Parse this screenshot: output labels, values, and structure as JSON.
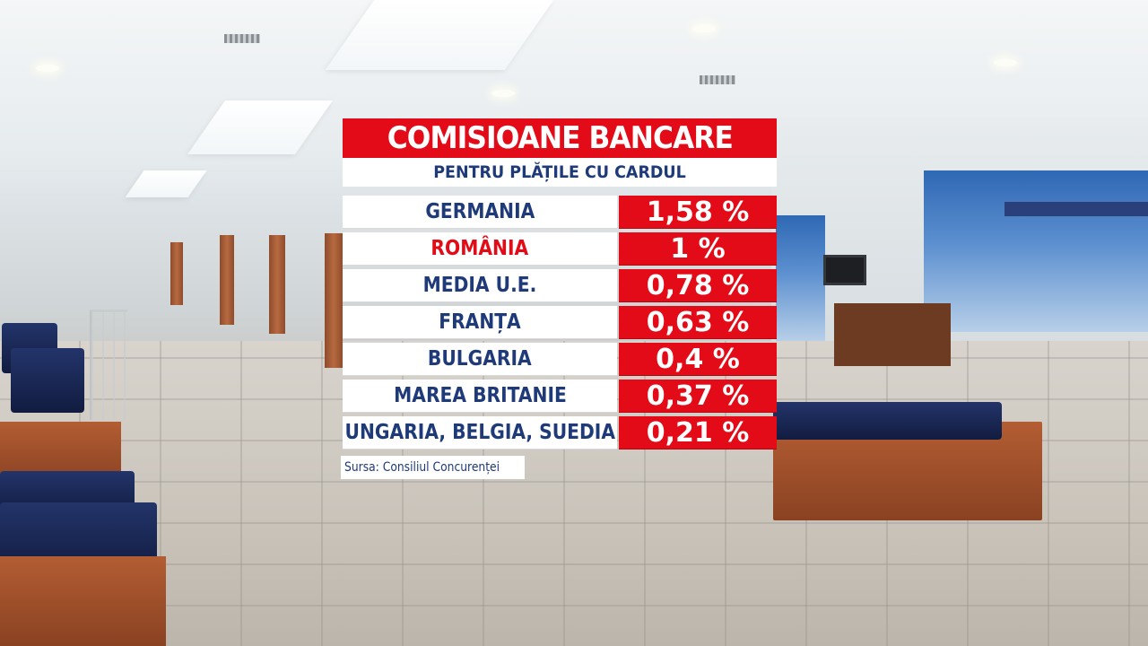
{
  "chart_data": {
    "type": "table",
    "title": "COMISIOANE BANCARE",
    "subtitle": "PENTRU PLĂȚILE CU CARDUL",
    "highlight_color": "#e30b17",
    "text_color": "#1f3a78",
    "rows": [
      {
        "country": "GERMANIA",
        "value": 1.58,
        "label": "1,58 %",
        "highlight": false
      },
      {
        "country": "ROMÂNIA",
        "value": 1,
        "label": "1 %",
        "highlight": true
      },
      {
        "country": "MEDIA U.E.",
        "value": 0.78,
        "label": "0,78 %",
        "highlight": false
      },
      {
        "country": "FRANȚA",
        "value": 0.63,
        "label": "0,63 %",
        "highlight": false
      },
      {
        "country": "BULGARIA",
        "value": 0.4,
        "label": "0,4 %",
        "highlight": false
      },
      {
        "country": "MAREA BRITANIE",
        "value": 0.37,
        "label": "0,37 %",
        "highlight": false
      },
      {
        "country": "UNGARIA, BELGIA, SUEDIA",
        "value": 0.21,
        "label": "0,21 %",
        "highlight": false
      }
    ],
    "source": "Sursa: Consiliul Concurenței"
  }
}
